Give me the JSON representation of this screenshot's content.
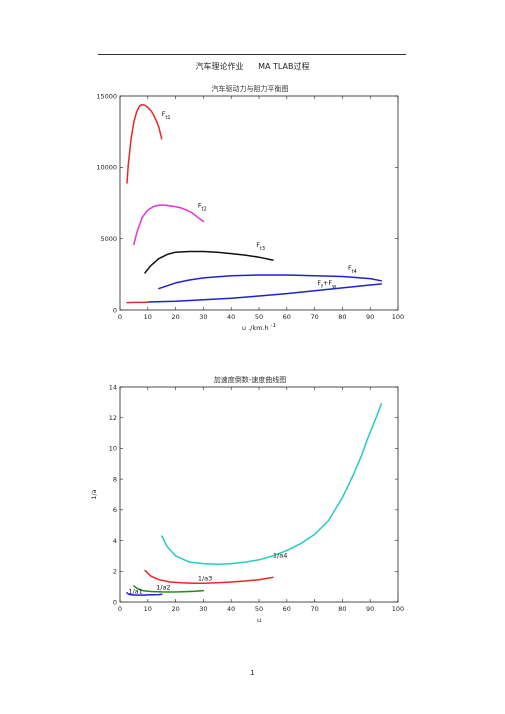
{
  "header": {
    "left": "汽车理论作业",
    "right": "MA TLAB过程"
  },
  "page_number": "1",
  "chart_data": [
    {
      "type": "line",
      "title": "汽车驱动力与阻力平衡图",
      "xlabel": "u ./km.h",
      "xlabel_sup": "-1",
      "ylabel": "",
      "xlim": [
        0,
        100
      ],
      "ylim": [
        0,
        15000
      ],
      "xticks": [
        0,
        10,
        20,
        30,
        40,
        50,
        60,
        70,
        80,
        90,
        100
      ],
      "yticks": [
        0,
        5000,
        10000,
        15000
      ],
      "grid": false,
      "series": [
        {
          "name": "Ft1",
          "label": "F",
          "sub": "t1",
          "label_at": [
            15,
            13600
          ],
          "color": "#e8262b",
          "x": [
            2.5,
            3,
            4,
            5,
            6,
            7,
            8,
            9,
            10,
            11,
            12,
            13,
            14,
            15
          ],
          "y": [
            8900,
            10200,
            12000,
            13200,
            13900,
            14300,
            14400,
            14350,
            14200,
            14000,
            13700,
            13300,
            12800,
            12000
          ]
        },
        {
          "name": "Ft2",
          "label": "F",
          "sub": "t2",
          "label_at": [
            28,
            7200
          ],
          "color": "#e333d6",
          "x": [
            5,
            6,
            8,
            10,
            12,
            14,
            16,
            18,
            20,
            22,
            24,
            26,
            28,
            30
          ],
          "y": [
            4600,
            5400,
            6500,
            7000,
            7250,
            7350,
            7350,
            7300,
            7250,
            7150,
            7000,
            6800,
            6500,
            6200
          ]
        },
        {
          "name": "Ft3",
          "label": "F",
          "sub": "t3",
          "label_at": [
            49,
            4400
          ],
          "color": "#111111",
          "x": [
            9,
            11,
            14,
            17,
            20,
            25,
            30,
            35,
            40,
            45,
            50,
            55
          ],
          "y": [
            2600,
            3100,
            3600,
            3900,
            4050,
            4100,
            4100,
            4050,
            3950,
            3850,
            3700,
            3500
          ]
        },
        {
          "name": "Ft4",
          "label": "F",
          "sub": "t4",
          "label_at": [
            82,
            2800
          ],
          "color": "#2020d0",
          "x": [
            14,
            20,
            25,
            30,
            40,
            50,
            60,
            70,
            80,
            90,
            94
          ],
          "y": [
            1500,
            1900,
            2100,
            2250,
            2400,
            2450,
            2450,
            2400,
            2350,
            2200,
            2050
          ]
        },
        {
          "name": "Ff+Fw",
          "label": "F",
          "sub": "f",
          "label2": "+F",
          "sub2": "w",
          "label_at": [
            71,
            1750
          ],
          "color": "#2020d0",
          "x": [
            10,
            20,
            30,
            40,
            50,
            60,
            70,
            80,
            90,
            94
          ],
          "y": [
            560,
            620,
            720,
            830,
            980,
            1150,
            1350,
            1550,
            1750,
            1820
          ]
        },
        {
          "name": "red-base",
          "color": "#e8262b",
          "x": [
            2.5,
            4,
            6,
            8,
            10
          ],
          "y": [
            520,
            525,
            530,
            535,
            540
          ]
        }
      ]
    },
    {
      "type": "line",
      "title": "加速度倒数-速度曲线图",
      "xlabel": "u",
      "ylabel": "1/a",
      "xlim": [
        0,
        100
      ],
      "ylim": [
        0,
        14
      ],
      "xticks": [
        0,
        10,
        20,
        30,
        40,
        50,
        60,
        70,
        80,
        90,
        100
      ],
      "yticks": [
        0,
        2,
        4,
        6,
        8,
        10,
        12,
        14
      ],
      "grid": false,
      "series": [
        {
          "name": "1/a4",
          "label": "1/a4",
          "label_at": [
            55,
            2.9
          ],
          "color": "#27c9c0",
          "x": [
            15,
            17,
            20,
            25,
            30,
            35,
            40,
            45,
            50,
            55,
            60,
            65,
            70,
            75,
            80,
            84,
            87,
            89,
            91,
            93,
            94
          ],
          "y": [
            4.3,
            3.6,
            3.0,
            2.6,
            2.5,
            2.45,
            2.5,
            2.6,
            2.75,
            3.0,
            3.35,
            3.8,
            4.4,
            5.3,
            6.8,
            8.3,
            9.6,
            10.6,
            11.5,
            12.4,
            12.9
          ]
        },
        {
          "name": "1/a3",
          "label": "1/a3",
          "label_at": [
            28,
            1.4
          ],
          "color": "#e8262b",
          "x": [
            9,
            11,
            14,
            18,
            22,
            26,
            30,
            35,
            40,
            45,
            50,
            55
          ],
          "y": [
            2.05,
            1.7,
            1.45,
            1.3,
            1.25,
            1.22,
            1.22,
            1.25,
            1.3,
            1.37,
            1.45,
            1.6
          ]
        },
        {
          "name": "1/a2",
          "label": "1/a2",
          "label_at": [
            13,
            0.8
          ],
          "color": "#1f8a1f",
          "x": [
            5,
            6,
            8,
            10,
            12,
            15,
            18,
            21,
            24,
            27,
            30
          ],
          "y": [
            1.05,
            0.9,
            0.75,
            0.7,
            0.68,
            0.66,
            0.65,
            0.66,
            0.68,
            0.7,
            0.74
          ]
        },
        {
          "name": "1/a1",
          "label": "1/a1",
          "label_at": [
            3,
            0.55
          ],
          "color": "#2020d0",
          "x": [
            2.5,
            3,
            4,
            6,
            8,
            10,
            12,
            14,
            15
          ],
          "y": [
            0.6,
            0.52,
            0.47,
            0.45,
            0.45,
            0.46,
            0.47,
            0.48,
            0.5
          ]
        }
      ]
    }
  ]
}
